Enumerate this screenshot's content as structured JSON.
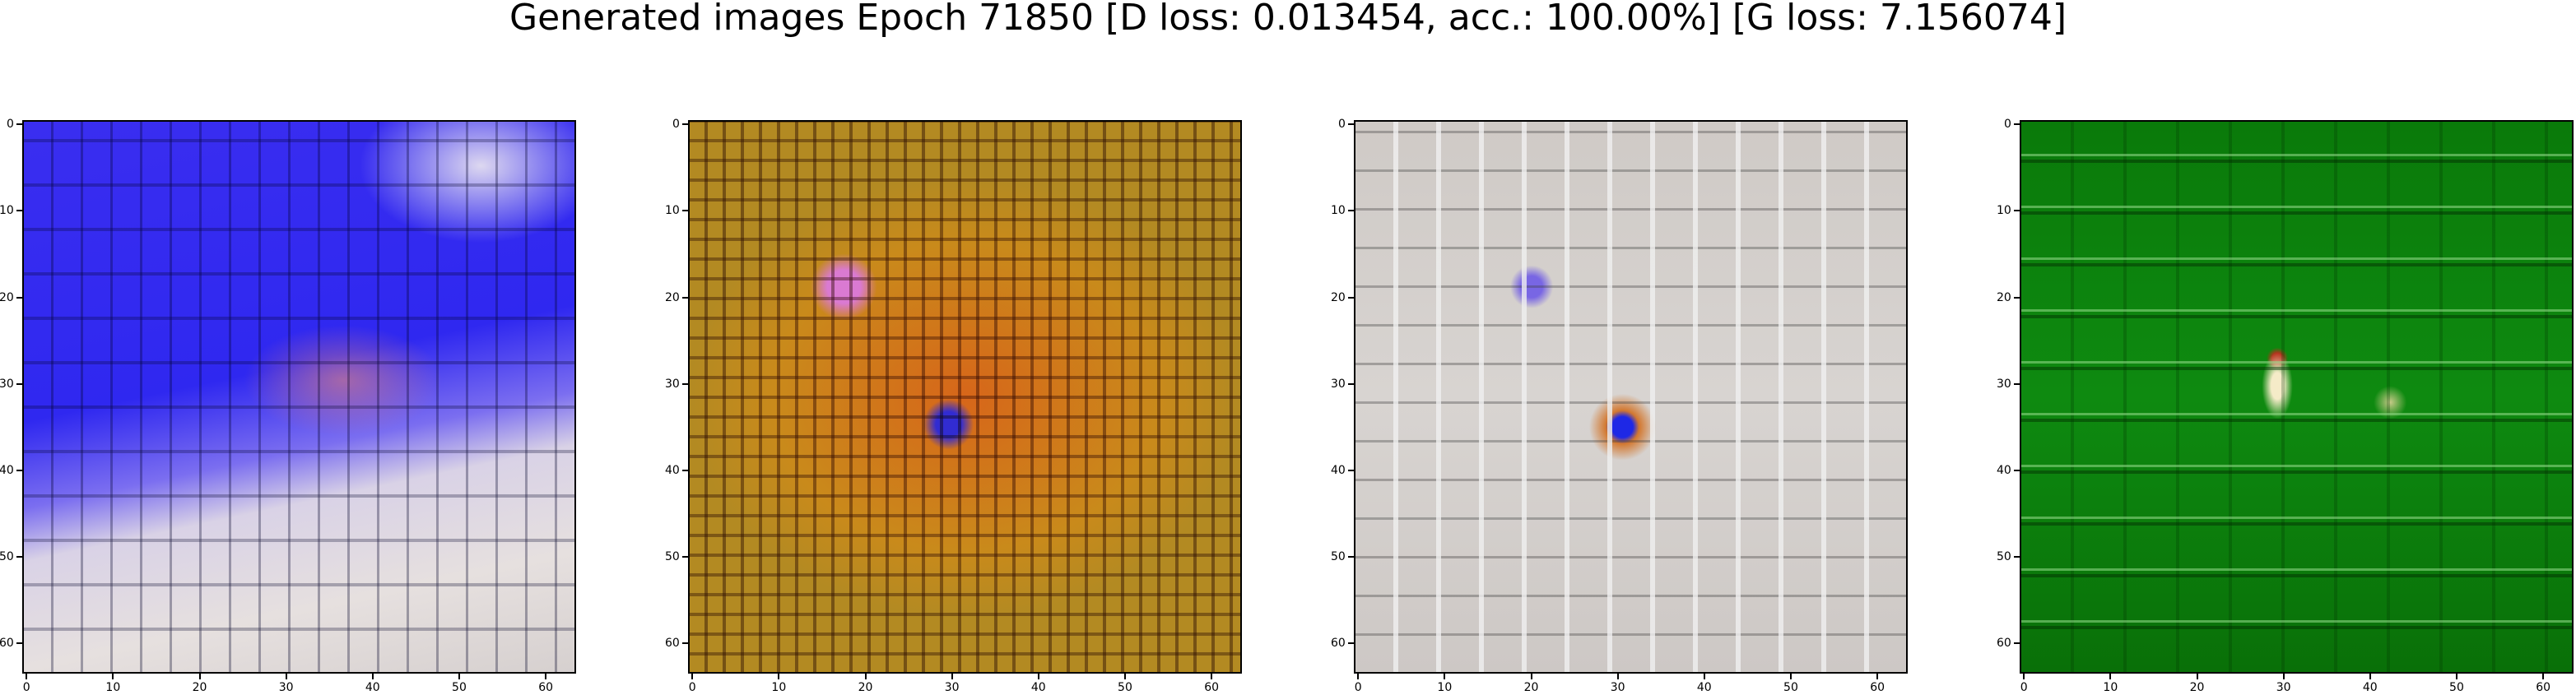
{
  "figure": {
    "title": "Generated images Epoch 71850 [D loss: 0.013454, acc.: 100.00%] [G loss: 7.156074]"
  },
  "chart_data": {
    "type": "image_grid",
    "title": "Generated images Epoch 71850 [D loss: 0.013454, acc.: 100.00%] [G loss: 7.156074]",
    "epoch": 71850,
    "d_loss": 0.013454,
    "accuracy_percent": 100.0,
    "g_loss": 7.156074,
    "panels": [
      {
        "description": "",
        "dominant_colors": [
          "#3a2ef0",
          "#e6e0df"
        ],
        "xlim": [
          0,
          63
        ],
        "ylim": [
          63,
          0
        ],
        "xticks": [
          "0",
          "10",
          "20",
          "30",
          "40",
          "50",
          "60"
        ],
        "yticks": [
          "0",
          "10",
          "20",
          "30",
          "40",
          "50",
          "60"
        ]
      },
      {
        "description": "",
        "dominant_colors": [
          "#c98a1b",
          "#d7661a"
        ],
        "xlim": [
          0,
          63
        ],
        "ylim": [
          63,
          0
        ],
        "xticks": [
          "0",
          "10",
          "20",
          "30",
          "40",
          "50",
          "60"
        ],
        "yticks": [
          "0",
          "10",
          "20",
          "30",
          "40",
          "50",
          "60"
        ]
      },
      {
        "description": "",
        "dominant_colors": [
          "#d8d4d1",
          "#2030e0"
        ],
        "xlim": [
          0,
          63
        ],
        "ylim": [
          63,
          0
        ],
        "xticks": [
          "0",
          "10",
          "20",
          "30",
          "40",
          "50",
          "60"
        ],
        "yticks": [
          "0",
          "10",
          "20",
          "30",
          "40",
          "50",
          "60"
        ]
      },
      {
        "description": "",
        "dominant_colors": [
          "#0e8a10",
          "#f5ebc8"
        ],
        "xlim": [
          0,
          63
        ],
        "ylim": [
          63,
          0
        ],
        "xticks": [
          "0",
          "10",
          "20",
          "30",
          "40",
          "50",
          "60"
        ],
        "yticks": [
          "0",
          "10",
          "20",
          "30",
          "40",
          "50",
          "60"
        ]
      }
    ]
  }
}
